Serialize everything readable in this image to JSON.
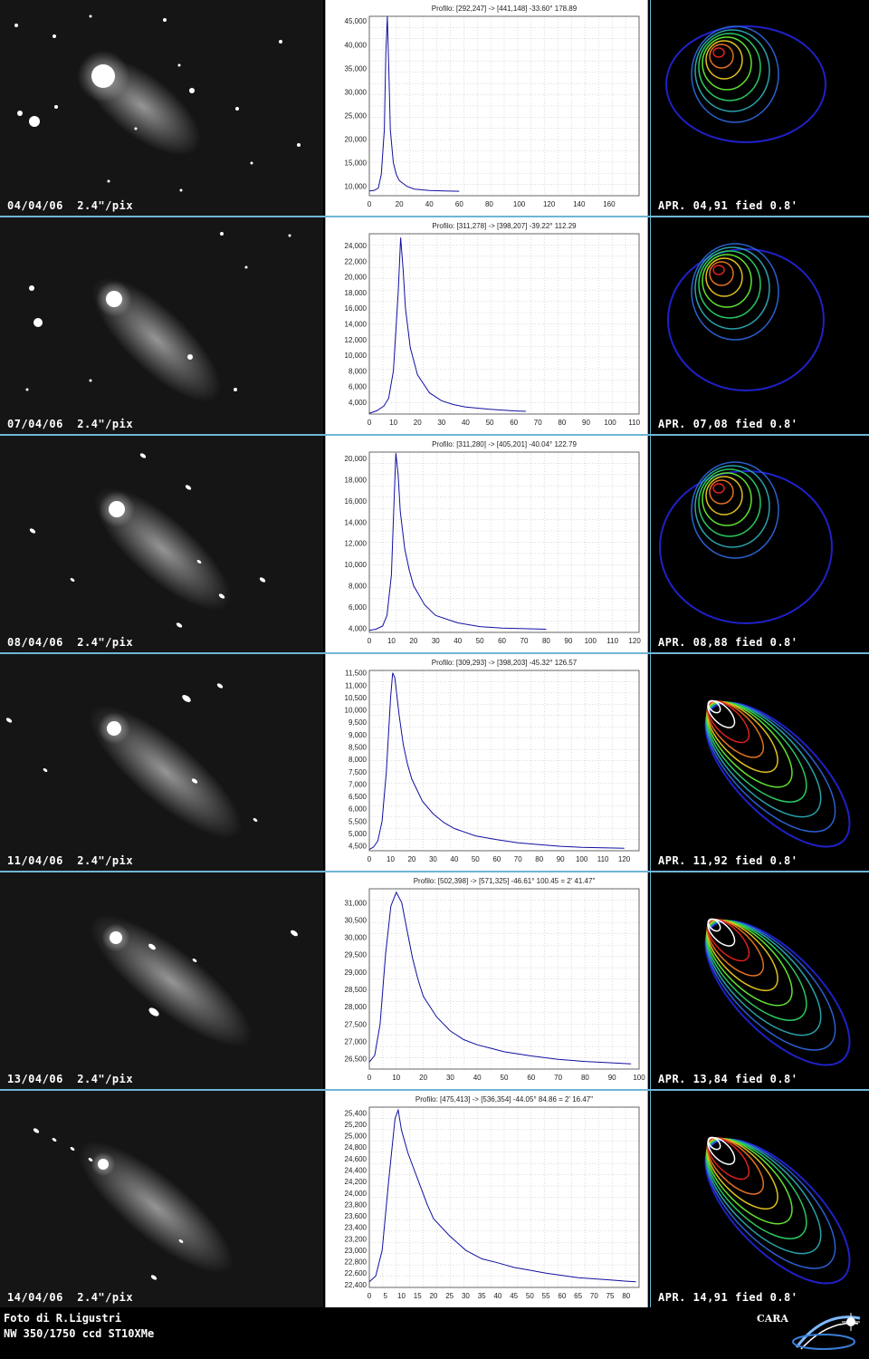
{
  "rows": [
    {
      "photo_caption": "04/04/06  2.4\"/pix",
      "contour_caption": "APR. 04,91 fied 0.8'",
      "chart_data": {
        "type": "line",
        "title": "Profilo: [292,247] -> [441,148] -33.60° 178.89",
        "xlim": [
          0,
          180
        ],
        "ylim": [
          8000,
          46000
        ],
        "xticks": [
          0,
          20,
          40,
          60,
          80,
          100,
          120,
          140,
          160
        ],
        "yticks": [
          10000,
          15000,
          20000,
          25000,
          30000,
          35000,
          40000,
          45000
        ],
        "x": [
          0,
          3,
          6,
          8,
          10,
          11,
          12,
          13,
          14,
          16,
          18,
          20,
          25,
          30,
          40,
          50,
          60
        ],
        "y": [
          9000,
          9100,
          9600,
          12500,
          22000,
          38000,
          46000,
          35000,
          22000,
          15000,
          12500,
          11200,
          10000,
          9400,
          9100,
          9000,
          8950
        ]
      }
    },
    {
      "photo_caption": "07/04/06  2.4\"/pix",
      "contour_caption": "APR. 07,08 fied 0.8'",
      "chart_data": {
        "type": "line",
        "title": "Profilo: [311,278] -> [398,207] -39.22° 112.29",
        "xlim": [
          0,
          112
        ],
        "ylim": [
          2500,
          25500
        ],
        "xticks": [
          0,
          10,
          20,
          30,
          40,
          50,
          60,
          70,
          80,
          90,
          100,
          110
        ],
        "yticks": [
          4000,
          6000,
          8000,
          10000,
          12000,
          14000,
          16000,
          18000,
          20000,
          22000,
          24000
        ],
        "x": [
          0,
          3,
          6,
          8,
          10,
          12,
          13,
          14,
          15,
          17,
          20,
          25,
          30,
          35,
          40,
          50,
          60,
          65
        ],
        "y": [
          2600,
          2900,
          3500,
          4500,
          8000,
          18000,
          25000,
          21000,
          16000,
          11000,
          7500,
          5200,
          4200,
          3700,
          3400,
          3100,
          2900,
          2850
        ]
      }
    },
    {
      "photo_caption": "08/04/06  2.4\"/pix",
      "contour_caption": "APR. 08,88 fied 0.8'",
      "chart_data": {
        "type": "line",
        "title": "Profilo: [311,280] -> [405,201] -40.04° 122.79",
        "xlim": [
          0,
          122
        ],
        "ylim": [
          3600,
          20600
        ],
        "xticks": [
          0,
          10,
          20,
          30,
          40,
          50,
          60,
          70,
          80,
          90,
          100,
          110,
          120
        ],
        "yticks": [
          4000,
          6000,
          8000,
          10000,
          12000,
          14000,
          16000,
          18000,
          20000
        ],
        "x": [
          0,
          3,
          6,
          8,
          10,
          11,
          12,
          13,
          14,
          16,
          18,
          20,
          25,
          30,
          40,
          50,
          60,
          70,
          80
        ],
        "y": [
          3800,
          3900,
          4200,
          5200,
          9000,
          15000,
          20500,
          18500,
          15000,
          11500,
          9500,
          8000,
          6200,
          5200,
          4500,
          4150,
          4000,
          3950,
          3900
        ]
      }
    },
    {
      "photo_caption": "11/04/06  2.4\"/pix",
      "contour_caption": "APR. 11,92 fied 0.8'",
      "chart_data": {
        "type": "line",
        "title": "Profilo: [309,293] -> [398,203] -45.32° 126.57",
        "xlim": [
          0,
          127
        ],
        "ylim": [
          4300,
          11600
        ],
        "xticks": [
          0,
          10,
          20,
          30,
          40,
          50,
          60,
          70,
          80,
          90,
          100,
          110,
          120
        ],
        "yticks": [
          4500,
          5000,
          5500,
          6000,
          6500,
          7000,
          7500,
          8000,
          8500,
          9000,
          9500,
          10000,
          10500,
          11000,
          11500
        ],
        "x": [
          0,
          2,
          4,
          6,
          8,
          10,
          11,
          12,
          14,
          16,
          18,
          20,
          25,
          30,
          35,
          40,
          50,
          60,
          70,
          80,
          90,
          100,
          110,
          120
        ],
        "y": [
          4350,
          4450,
          4700,
          5500,
          7500,
          10500,
          11500,
          11300,
          9800,
          8600,
          7800,
          7200,
          6300,
          5800,
          5450,
          5200,
          4900,
          4750,
          4620,
          4550,
          4480,
          4440,
          4420,
          4400
        ]
      }
    },
    {
      "photo_caption": "13/04/06  2.4\"/pix",
      "contour_caption": "APR. 13,84 fied 0.8'",
      "chart_data": {
        "type": "line",
        "title": "Profilo: [502,398] -> [571,325] -46.61° 100.45 = 2' 41.47\"",
        "xlim": [
          0,
          100
        ],
        "ylim": [
          26200,
          31400
        ],
        "xticks": [
          0,
          10,
          20,
          30,
          40,
          50,
          60,
          70,
          80,
          90,
          100
        ],
        "yticks": [
          26500,
          27000,
          27500,
          28000,
          28500,
          29000,
          29500,
          30000,
          30500,
          31000
        ],
        "x": [
          0,
          2,
          4,
          6,
          8,
          10,
          12,
          14,
          16,
          18,
          20,
          25,
          30,
          35,
          40,
          45,
          50,
          60,
          70,
          80,
          90,
          97
        ],
        "y": [
          26400,
          26600,
          27500,
          29500,
          30900,
          31300,
          31000,
          30200,
          29400,
          28800,
          28300,
          27700,
          27300,
          27050,
          26900,
          26800,
          26700,
          26580,
          26480,
          26420,
          26380,
          26350
        ]
      }
    },
    {
      "photo_caption": "14/04/06  2.4\"/pix",
      "contour_caption": "APR. 14,91 fied 0.8'",
      "chart_data": {
        "type": "line",
        "title": "Profilo: [475,413] -> [536,354] -44.05° 84.86 = 2' 16.47\"",
        "xlim": [
          0,
          84
        ],
        "ylim": [
          22350,
          25500
        ],
        "xticks": [
          0,
          5,
          10,
          15,
          20,
          25,
          30,
          35,
          40,
          45,
          50,
          55,
          60,
          65,
          70,
          75,
          80
        ],
        "yticks": [
          22400,
          22600,
          22800,
          23000,
          23200,
          23400,
          23600,
          23800,
          24000,
          24200,
          24400,
          24600,
          24800,
          25000,
          25200,
          25400
        ],
        "x": [
          0,
          2,
          4,
          6,
          8,
          9,
          10,
          12,
          14,
          16,
          18,
          20,
          25,
          30,
          35,
          40,
          45,
          50,
          55,
          60,
          65,
          70,
          75,
          80,
          83
        ],
        "y": [
          22450,
          22550,
          23000,
          24200,
          25300,
          25450,
          25100,
          24700,
          24400,
          24100,
          23800,
          23550,
          23250,
          23000,
          22850,
          22780,
          22700,
          22650,
          22600,
          22560,
          22520,
          22500,
          22480,
          22460,
          22450
        ]
      }
    }
  ],
  "footer": {
    "line1": "Foto di R.Ligustri",
    "line2": "NW 350/1750 ccd ST10XMe",
    "logo_text": "CARA"
  }
}
